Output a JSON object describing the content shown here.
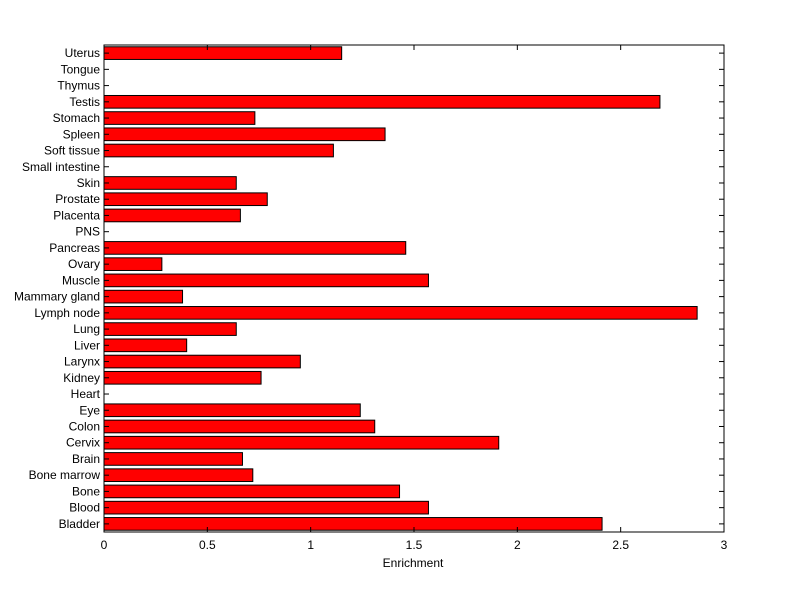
{
  "chart_data": {
    "type": "bar",
    "orientation": "horizontal",
    "title": "",
    "xlabel": "Enrichment",
    "ylabel": "",
    "xlim": [
      0,
      3
    ],
    "xticks": [
      0,
      0.5,
      1,
      1.5,
      2,
      2.5,
      3
    ],
    "xtick_labels": [
      "0",
      "0.5",
      "1",
      "1.5",
      "2",
      "2.5",
      "3"
    ],
    "grid": false,
    "legend": "none",
    "bar_color": "#ff0000",
    "bar_edge_color": "#000000",
    "categories": [
      "Bladder",
      "Blood",
      "Bone",
      "Bone marrow",
      "Brain",
      "Cervix",
      "Colon",
      "Eye",
      "Heart",
      "Kidney",
      "Larynx",
      "Liver",
      "Lung",
      "Lymph node",
      "Mammary gland",
      "Muscle",
      "Ovary",
      "Pancreas",
      "PNS",
      "Placenta",
      "Prostate",
      "Skin",
      "Small intestine",
      "Soft tissue",
      "Spleen",
      "Stomach",
      "Testis",
      "Thymus",
      "Tongue",
      "Uterus"
    ],
    "values": [
      2.41,
      1.57,
      1.43,
      0.72,
      0.67,
      1.91,
      1.31,
      1.24,
      0,
      0.76,
      0.95,
      0.4,
      0.64,
      2.87,
      0.38,
      1.57,
      0.28,
      1.46,
      0,
      0.66,
      0.79,
      0.64,
      0,
      1.11,
      1.36,
      0.73,
      2.69,
      0,
      0,
      1.15
    ]
  }
}
